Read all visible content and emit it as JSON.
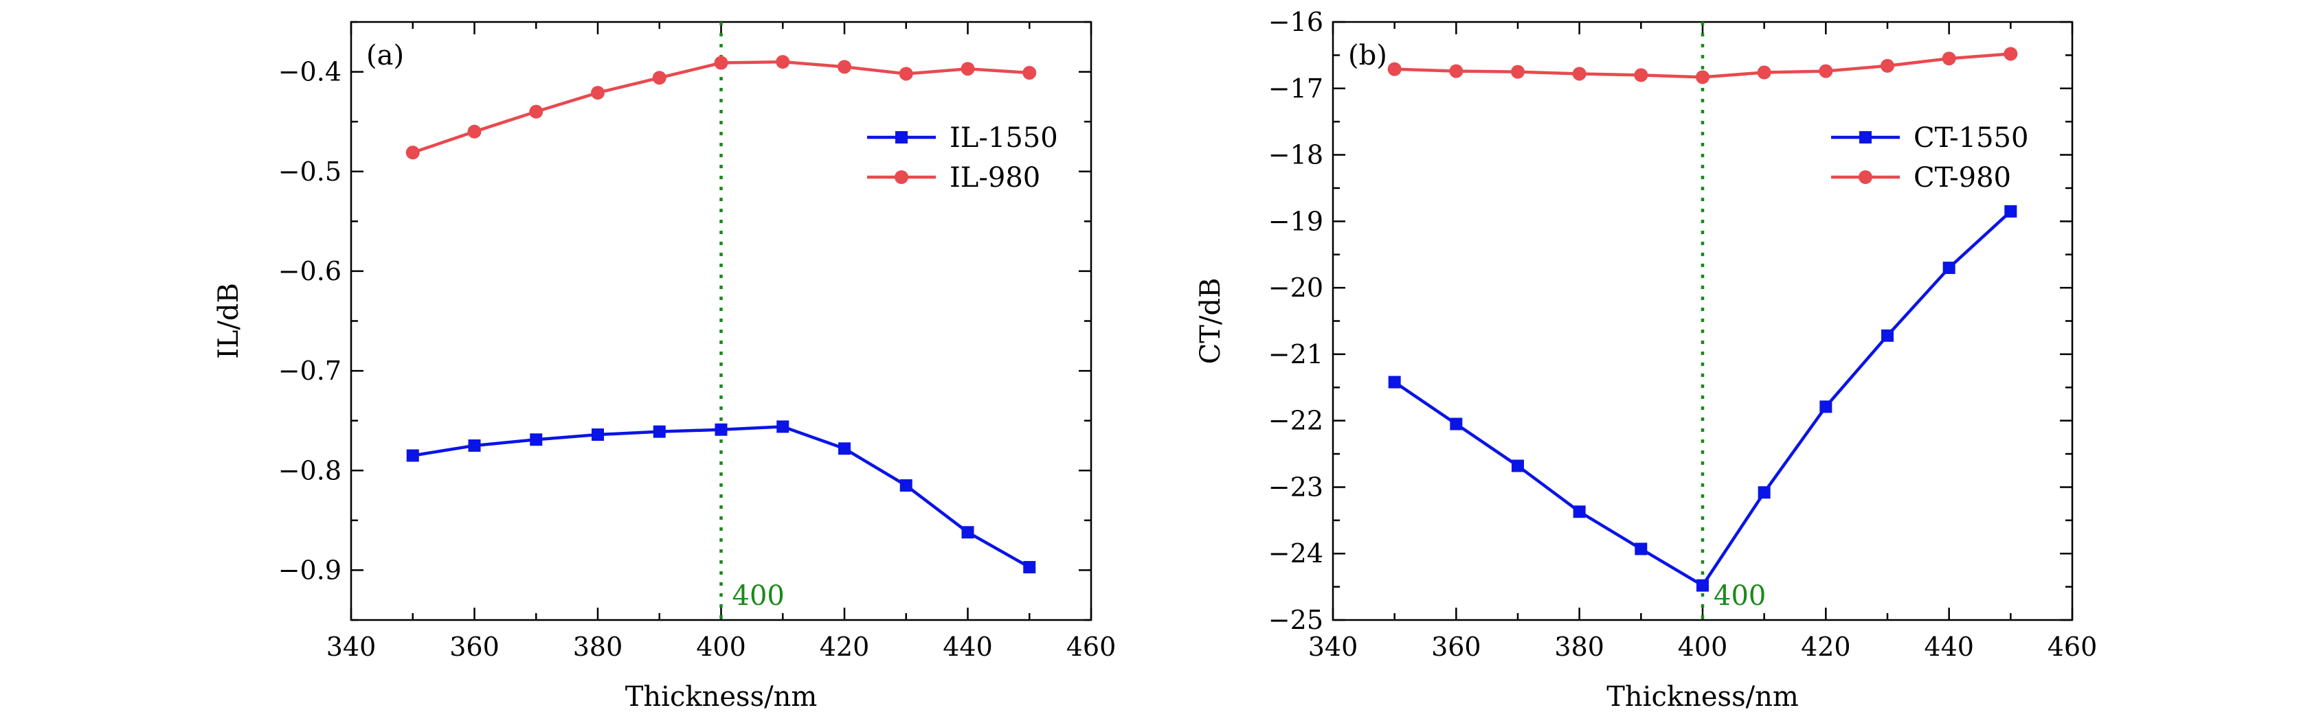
{
  "chart_data": [
    {
      "type": "line",
      "panel_label": "(a)",
      "xlabel": "Thickness/nm",
      "ylabel": "IL/dB",
      "xlim": [
        340,
        460
      ],
      "ylim": [
        -0.95,
        -0.35
      ],
      "xticks": [
        340,
        360,
        380,
        400,
        420,
        440,
        460
      ],
      "yticks": [
        -0.9,
        -0.8,
        -0.7,
        -0.6,
        -0.5,
        -0.4
      ],
      "ytick_labels": [
        "−0.9",
        "−0.8",
        "−0.7",
        "−0.6",
        "−0.5",
        "−0.4"
      ],
      "legend_position": "upper-right",
      "x": [
        350,
        360,
        370,
        380,
        390,
        400,
        410,
        420,
        430,
        440,
        450
      ],
      "reference_line": {
        "x": 400,
        "label": "400",
        "color": "#1a8a1a"
      },
      "series": [
        {
          "name": "IL-1550",
          "color": "#0a14e6",
          "marker": "square",
          "values": [
            -0.785,
            -0.775,
            -0.769,
            -0.764,
            -0.761,
            -0.759,
            -0.756,
            -0.778,
            -0.815,
            -0.862,
            -0.897
          ]
        },
        {
          "name": "IL-980",
          "color": "#e84a4f",
          "marker": "circle",
          "values": [
            -0.481,
            -0.46,
            -0.44,
            -0.421,
            -0.406,
            -0.391,
            -0.39,
            -0.395,
            -0.402,
            -0.397,
            -0.401
          ]
        }
      ]
    },
    {
      "type": "line",
      "panel_label": "(b)",
      "xlabel": "Thickness/nm",
      "ylabel": "CT/dB",
      "xlim": [
        340,
        460
      ],
      "ylim": [
        -25,
        -16
      ],
      "xticks": [
        340,
        360,
        380,
        400,
        420,
        440,
        460
      ],
      "yticks": [
        -25,
        -24,
        -23,
        -22,
        -21,
        -20,
        -19,
        -18,
        -17,
        -16
      ],
      "ytick_labels": [
        "−25",
        "−24",
        "−23",
        "−22",
        "−21",
        "−20",
        "−19",
        "−18",
        "−17",
        "−16"
      ],
      "legend_position": "upper-right",
      "x": [
        350,
        360,
        370,
        380,
        390,
        400,
        410,
        420,
        430,
        440,
        450
      ],
      "reference_line": {
        "x": 400,
        "label": "400",
        "color": "#1a8a1a"
      },
      "series": [
        {
          "name": "CT-1550",
          "color": "#0a14e6",
          "marker": "square",
          "values": [
            -21.42,
            -22.05,
            -22.68,
            -23.37,
            -23.93,
            -24.48,
            -23.08,
            -21.79,
            -20.72,
            -19.7,
            -18.85
          ]
        },
        {
          "name": "CT-980",
          "color": "#e84a4f",
          "marker": "circle",
          "values": [
            -16.71,
            -16.74,
            -16.75,
            -16.78,
            -16.8,
            -16.83,
            -16.76,
            -16.74,
            -16.66,
            -16.55,
            -16.48
          ]
        }
      ]
    }
  ]
}
